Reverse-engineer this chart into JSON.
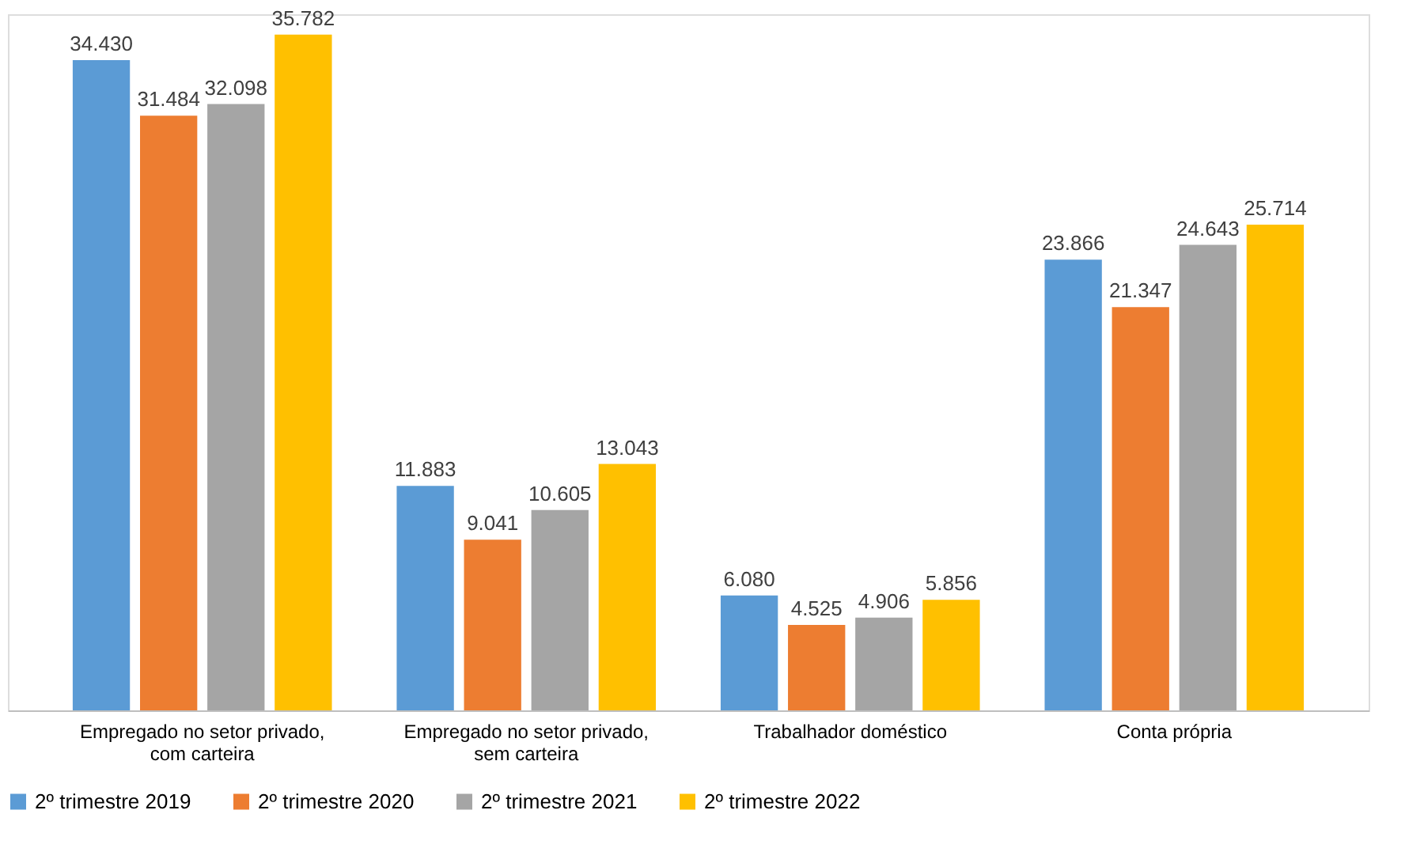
{
  "chart_data": {
    "type": "bar",
    "categories": [
      "Empregado no setor privado, com carteira",
      "Empregado no setor privado, sem carteira",
      "Trabalhador doméstico",
      "Conta própria"
    ],
    "series": [
      {
        "name": "2º trimestre 2019",
        "color": "#5b9bd5",
        "values": [
          34430,
          11883,
          6080,
          23866
        ],
        "value_labels": [
          "34.430",
          "11.883",
          "6.080",
          "23.866"
        ]
      },
      {
        "name": "2º trimestre 2020",
        "color": "#ed7d31",
        "values": [
          31484,
          9041,
          4525,
          21347
        ],
        "value_labels": [
          "31.484",
          "9.041",
          "4.525",
          "21.347"
        ]
      },
      {
        "name": "2º trimestre 2021",
        "color": "#a5a5a5",
        "values": [
          32098,
          10605,
          4906,
          24643
        ],
        "value_labels": [
          "32.098",
          "10.605",
          "4.906",
          "24.643"
        ]
      },
      {
        "name": "2º trimestre 2022",
        "color": "#ffc000",
        "values": [
          35782,
          13043,
          5856,
          25714
        ],
        "value_labels": [
          "35.782",
          "13.043",
          "5.856",
          "25.714"
        ]
      }
    ],
    "legend": "bottom",
    "grid": false
  }
}
